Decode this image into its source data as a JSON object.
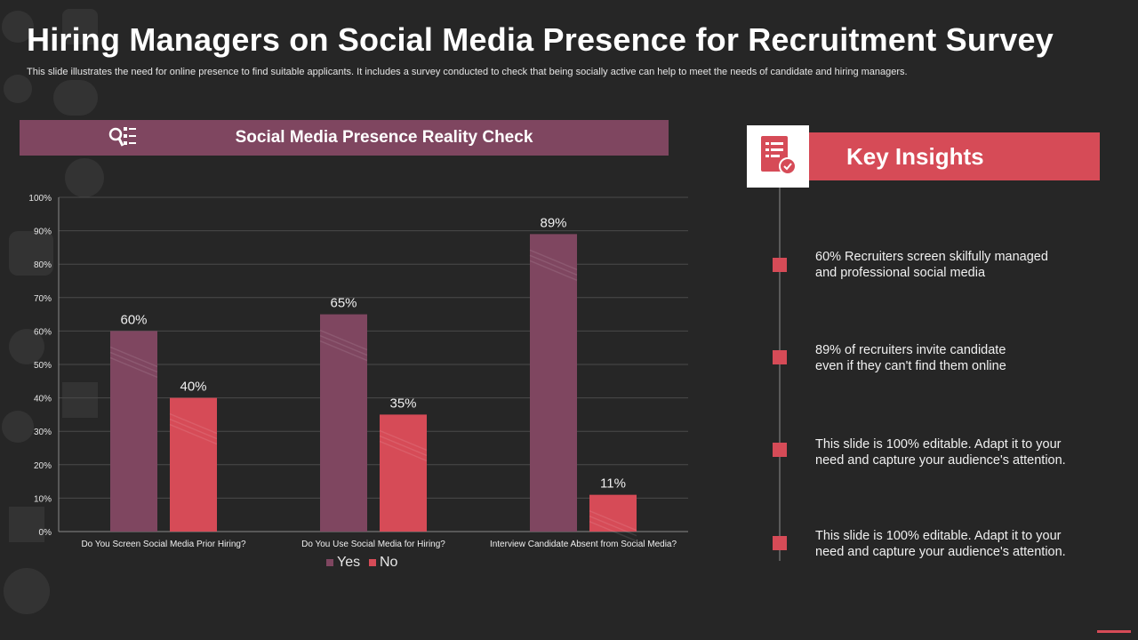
{
  "title": "Hiring Managers on Social Media Presence for Recruitment Survey",
  "subtitle": "This slide illustrates the need for online presence to find suitable applicants. It includes a survey conducted to check that  being socially active can help to  meet the needs of candidate and hiring managers.",
  "chart_header": {
    "title": "Social Media Presence  Reality  Check",
    "icon": "search-checklist-icon"
  },
  "chart_data": {
    "type": "bar",
    "title": "Social Media Presence  Reality  Check",
    "categories": [
      "Do You Screen Social Media Prior Hiring?",
      "Do You Use Social Media for Hiring?",
      "Interview Candidate Absent from Social Media?"
    ],
    "series": [
      {
        "name": "Yes",
        "values": [
          60,
          65,
          89
        ],
        "color": "#7f4660"
      },
      {
        "name": "No",
        "values": [
          40,
          35,
          11
        ],
        "color": "#d64b57"
      }
    ],
    "data_labels": [
      [
        "60%",
        "65%",
        "89%"
      ],
      [
        "40%",
        "35%",
        "11%"
      ]
    ],
    "ylim": [
      0,
      100
    ],
    "y_ticks": [
      "0%",
      "10%",
      "20%",
      "30%",
      "40%",
      "50%",
      "60%",
      "70%",
      "80%",
      "90%",
      "100%"
    ],
    "xlabel": "",
    "ylabel": "",
    "grid": true,
    "legend": "bottom-center"
  },
  "key_insights": {
    "heading": "Key Insights",
    "icon": "document-report-icon",
    "items": [
      {
        "line1": "60% Recruiters screen skilfully managed",
        "line2": "and professional social media"
      },
      {
        "line1": "89% of recruiters invite candidate",
        "line2": "even if they can't find them online"
      },
      {
        "line1": "This slide is 100% editable.  Adapt it to your",
        "line2": "need and capture your audience's attention."
      },
      {
        "line1": "This slide is 100% editable.  Adapt it to your",
        "line2": "need and capture your audience's attention."
      }
    ]
  },
  "colors": {
    "background": "#262626",
    "accent": "#d64b57",
    "plum": "#7f4660",
    "grid": "#4a4a4a"
  }
}
